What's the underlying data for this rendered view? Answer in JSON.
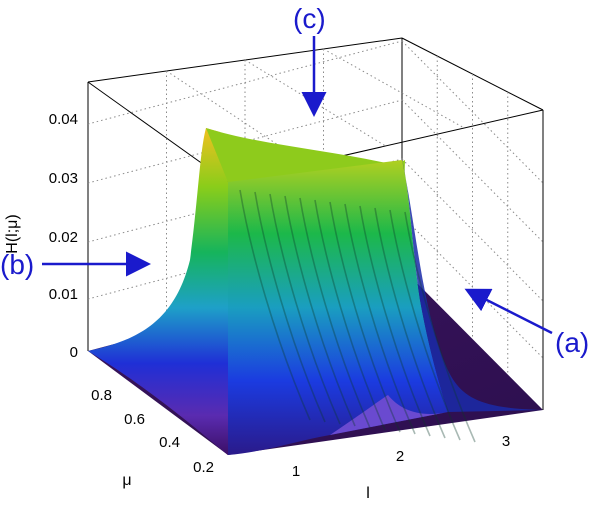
{
  "chart_data": {
    "type": "surface",
    "title": "",
    "xlabel": "l",
    "ylabel": "μ",
    "zlabel": "H(l;μ)",
    "x_ticks": [
      "1",
      "2",
      "3"
    ],
    "y_ticks": [
      "0.2",
      "0.4",
      "0.6",
      "0.8"
    ],
    "z_ticks": [
      "0",
      "0.01",
      "0.02",
      "0.03",
      "0.04"
    ],
    "xlim": [
      0.5,
      3.7
    ],
    "ylim": [
      0.15,
      1.0
    ],
    "zlim": [
      0,
      0.045
    ],
    "grid": true,
    "colormap": "jet",
    "series": [
      {
        "name": "",
        "description_points": [
          {
            "l": 0.6,
            "mu": 0.9,
            "H": 0.0
          },
          {
            "l": 1.0,
            "mu": 0.9,
            "H": 0.001
          },
          {
            "l": 1.3,
            "mu": 0.9,
            "H": 0.02
          },
          {
            "l": 1.5,
            "mu": 0.9,
            "H": 0.038
          },
          {
            "l": 2.0,
            "mu": 0.9,
            "H": 0.037
          },
          {
            "l": 2.6,
            "mu": 0.9,
            "H": 0.035
          },
          {
            "l": 2.9,
            "mu": 0.9,
            "H": 0.036
          },
          {
            "l": 3.1,
            "mu": 0.9,
            "H": 0.01
          },
          {
            "l": 3.5,
            "mu": 0.9,
            "H": 0.0
          }
        ]
      }
    ],
    "annotations": [
      {
        "label": "(a)"
      },
      {
        "label": "(b)"
      },
      {
        "label": "(c)"
      }
    ],
    "colors": {
      "arrow": "#1a1acc",
      "floor": "#3a0f5c",
      "grid": "#7a7a7a"
    }
  }
}
